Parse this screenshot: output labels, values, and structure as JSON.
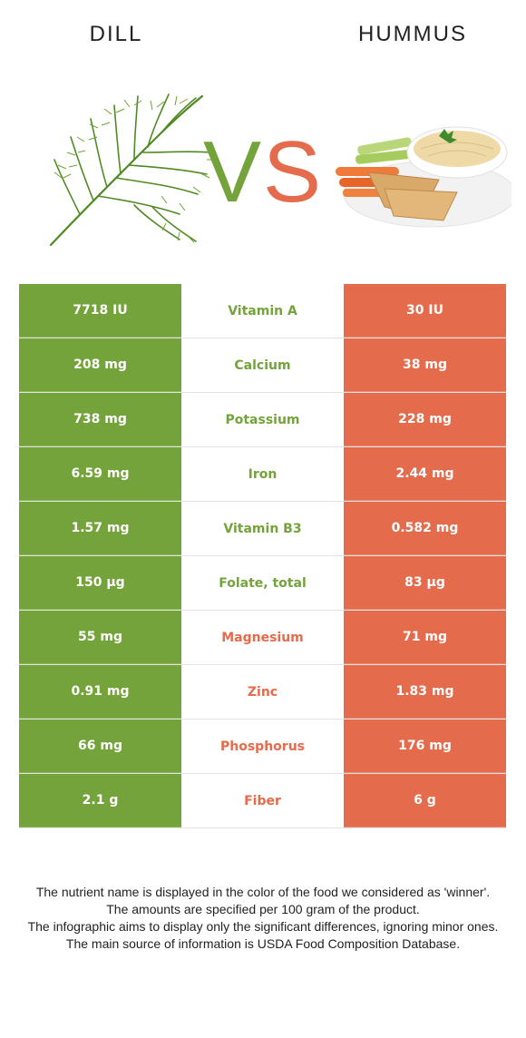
{
  "header": {
    "left_food": "DILL",
    "right_food": "HUMMUS"
  },
  "colors": {
    "dill": "#74a33b",
    "hummus": "#e46b4c",
    "vs_left": "#74a33b",
    "vs_right": "#e46b4c"
  },
  "vs_text": {
    "v": "V",
    "s": "S"
  },
  "rows": [
    {
      "left": "7718 IU",
      "nutrient": "Vitamin A",
      "right": "30 IU",
      "winner": "dill"
    },
    {
      "left": "208 mg",
      "nutrient": "Calcium",
      "right": "38 mg",
      "winner": "dill"
    },
    {
      "left": "738 mg",
      "nutrient": "Potassium",
      "right": "228 mg",
      "winner": "dill"
    },
    {
      "left": "6.59 mg",
      "nutrient": "Iron",
      "right": "2.44 mg",
      "winner": "dill"
    },
    {
      "left": "1.57 mg",
      "nutrient": "Vitamin B3",
      "right": "0.582 mg",
      "winner": "dill"
    },
    {
      "left": "150 µg",
      "nutrient": "Folate, total",
      "right": "83 µg",
      "winner": "dill"
    },
    {
      "left": "55 mg",
      "nutrient": "Magnesium",
      "right": "71 mg",
      "winner": "hummus"
    },
    {
      "left": "0.91 mg",
      "nutrient": "Zinc",
      "right": "1.83 mg",
      "winner": "hummus"
    },
    {
      "left": "66 mg",
      "nutrient": "Phosphorus",
      "right": "176 mg",
      "winner": "hummus"
    },
    {
      "left": "2.1 g",
      "nutrient": "Fiber",
      "right": "6 g",
      "winner": "hummus"
    }
  ],
  "footnote": [
    "The nutrient name is displayed in the color of the food we considered as 'winner'.",
    "The amounts are specified per 100 gram of the product.",
    "The infographic aims to display only the significant differences, ignoring minor ones.",
    "The main source of information is USDA Food Composition Database."
  ]
}
